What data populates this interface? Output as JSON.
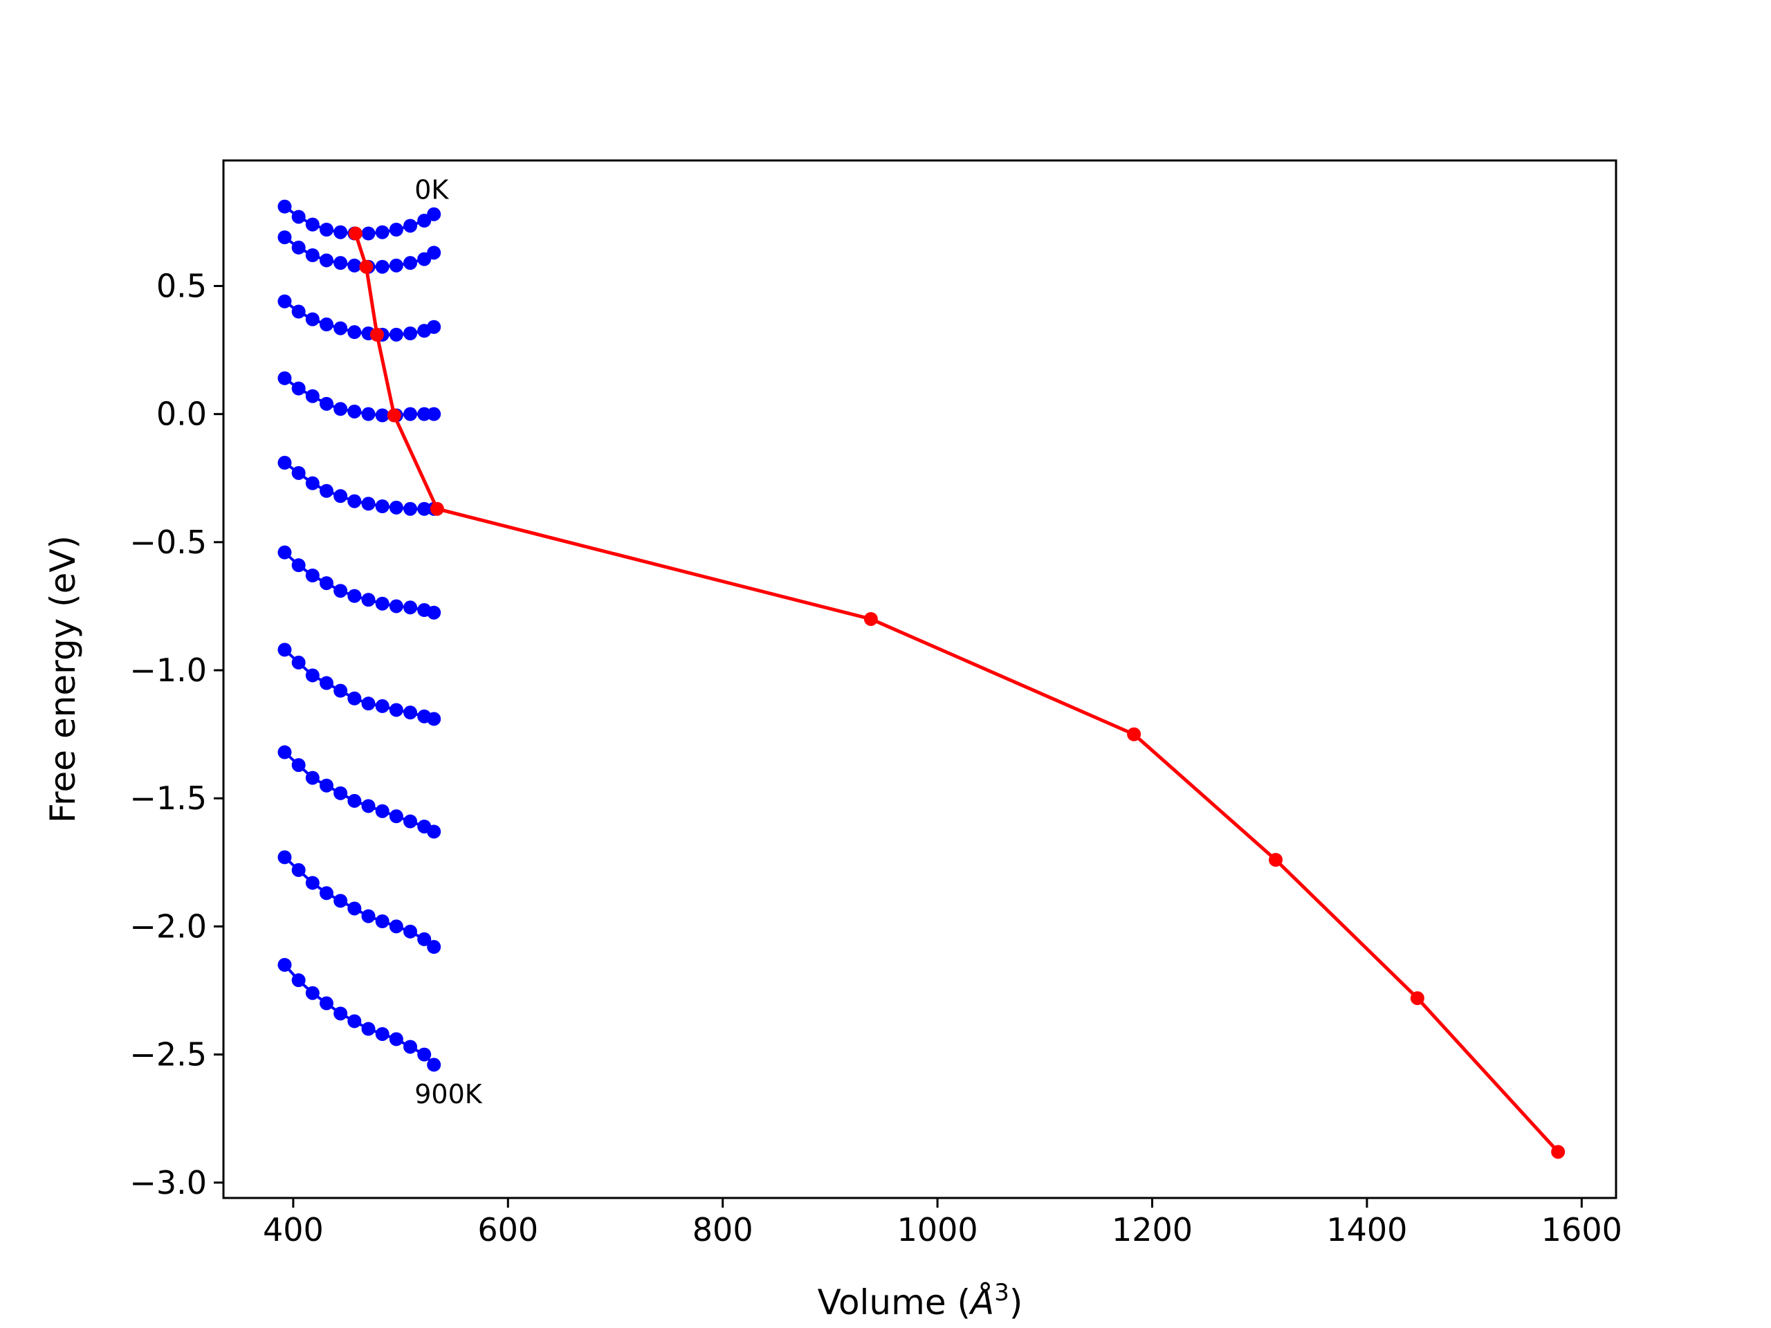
{
  "chart_data": {
    "type": "line",
    "xlabel_prefix": "Volume (",
    "xlabel_unit": "Å",
    "xlabel_exp": "3",
    "xlabel_suffix": ")",
    "ylabel": "Free energy (eV)",
    "xlim": [
      335,
      1632
    ],
    "ylim": [
      -3.06,
      0.99
    ],
    "xticks": [
      400,
      600,
      800,
      1000,
      1200,
      1400,
      1600
    ],
    "xtick_labels": [
      "400",
      "600",
      "800",
      "1000",
      "1200",
      "1400",
      "1600"
    ],
    "yticks": [
      0.5,
      0.0,
      -0.5,
      -1.0,
      -1.5,
      -2.0,
      -2.5,
      -3.0
    ],
    "ytick_labels": [
      "0.5",
      "0.0",
      "−0.5",
      "−1.0",
      "−1.5",
      "−2.0",
      "−2.5",
      "−3.0"
    ],
    "grid": false,
    "annotations": [
      {
        "text": "0K",
        "x": 513,
        "y": 0.84
      },
      {
        "text": "900K",
        "x": 513,
        "y": -2.69
      }
    ],
    "curve_colors": {
      "isotherm": "#0000ff",
      "minimum": "#ff0000"
    },
    "isotherm_x": [
      392,
      405,
      418,
      431,
      444,
      457,
      470,
      483,
      496,
      509,
      522,
      531
    ],
    "isotherms": [
      {
        "y": [
          0.81,
          0.77,
          0.74,
          0.72,
          0.71,
          0.705,
          0.705,
          0.71,
          0.72,
          0.735,
          0.755,
          0.78
        ]
      },
      {
        "y": [
          0.69,
          0.65,
          0.62,
          0.6,
          0.59,
          0.58,
          0.575,
          0.575,
          0.58,
          0.59,
          0.605,
          0.63
        ]
      },
      {
        "y": [
          0.44,
          0.4,
          0.37,
          0.35,
          0.335,
          0.32,
          0.315,
          0.31,
          0.31,
          0.315,
          0.325,
          0.34
        ]
      },
      {
        "y": [
          0.14,
          0.1,
          0.07,
          0.04,
          0.02,
          0.01,
          0.0,
          -0.005,
          -0.005,
          0.0,
          0.0,
          0.0
        ]
      },
      {
        "y": [
          -0.19,
          -0.23,
          -0.27,
          -0.3,
          -0.32,
          -0.34,
          -0.35,
          -0.36,
          -0.365,
          -0.37,
          -0.37,
          -0.37
        ]
      },
      {
        "y": [
          -0.54,
          -0.59,
          -0.63,
          -0.66,
          -0.69,
          -0.71,
          -0.725,
          -0.74,
          -0.75,
          -0.755,
          -0.765,
          -0.775
        ]
      },
      {
        "y": [
          -0.92,
          -0.97,
          -1.02,
          -1.05,
          -1.08,
          -1.11,
          -1.13,
          -1.14,
          -1.155,
          -1.165,
          -1.18,
          -1.19
        ]
      },
      {
        "y": [
          -1.32,
          -1.37,
          -1.42,
          -1.45,
          -1.48,
          -1.51,
          -1.53,
          -1.55,
          -1.57,
          -1.59,
          -1.61,
          -1.63
        ]
      },
      {
        "y": [
          -1.73,
          -1.78,
          -1.83,
          -1.87,
          -1.9,
          -1.93,
          -1.96,
          -1.98,
          -2.0,
          -2.02,
          -2.05,
          -2.08
        ]
      },
      {
        "y": [
          -2.15,
          -2.21,
          -2.26,
          -2.3,
          -2.34,
          -2.37,
          -2.4,
          -2.42,
          -2.44,
          -2.47,
          -2.5,
          -2.54
        ]
      }
    ],
    "minimum_curve": {
      "x": [
        458,
        468,
        478,
        494,
        534,
        938,
        1183,
        1315,
        1447,
        1578
      ],
      "y": [
        0.705,
        0.575,
        0.31,
        -0.005,
        -0.37,
        -0.8,
        -1.25,
        -1.74,
        -2.28,
        -2.88
      ]
    }
  }
}
